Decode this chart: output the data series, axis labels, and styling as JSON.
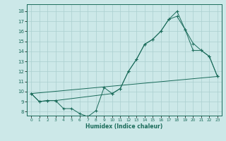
{
  "bg_color": "#cce8e8",
  "line_color": "#1a6b5a",
  "grid_color": "#aacfcf",
  "xlabel": "Humidex (Indice chaleur)",
  "ylabel_ticks": [
    8,
    9,
    10,
    11,
    12,
    13,
    14,
    15,
    16,
    17,
    18
  ],
  "xlim": [
    -0.5,
    23.5
  ],
  "ylim": [
    7.6,
    18.7
  ],
  "xticks": [
    0,
    1,
    2,
    3,
    4,
    5,
    6,
    7,
    8,
    9,
    10,
    11,
    12,
    13,
    14,
    15,
    16,
    17,
    18,
    19,
    20,
    21,
    22,
    23
  ],
  "line1_x": [
    0,
    1,
    2,
    3,
    4,
    5,
    6,
    7,
    8,
    9,
    10,
    11,
    12,
    13,
    14,
    15,
    16,
    17,
    18,
    19,
    20,
    21,
    22,
    23
  ],
  "line1_y": [
    9.8,
    9.0,
    9.1,
    9.1,
    8.3,
    8.3,
    7.8,
    7.5,
    8.1,
    10.4,
    9.8,
    10.3,
    12.0,
    13.2,
    14.7,
    15.2,
    16.0,
    17.2,
    18.0,
    16.2,
    14.1,
    14.1,
    13.5,
    11.5
  ],
  "line2_x": [
    0,
    1,
    2,
    3,
    10,
    11,
    12,
    13,
    14,
    15,
    16,
    17,
    18,
    19,
    20,
    21,
    22,
    23
  ],
  "line2_y": [
    9.8,
    9.0,
    9.1,
    9.1,
    9.8,
    10.3,
    12.0,
    13.2,
    14.7,
    15.2,
    16.0,
    17.2,
    17.5,
    16.2,
    14.8,
    14.1,
    13.5,
    11.5
  ],
  "line3_x": [
    0,
    23
  ],
  "line3_y": [
    9.8,
    11.5
  ]
}
